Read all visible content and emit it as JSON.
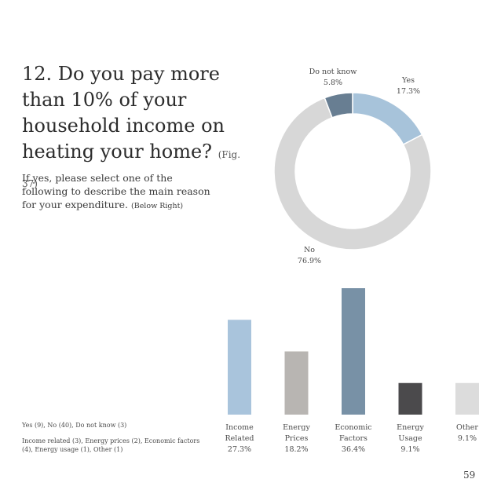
{
  "page": {
    "title": "12. Do you pay more than 10% of your household income on heating your home?",
    "fig_ref": "(Fig. 37)",
    "subtitle": "If yes, please select one of the following to describe the main reason for your expenditure.",
    "subtitle_note": "(Below Right)",
    "footnote_counts": "Yes (9), No (40), Do not know (3)",
    "footnote_reasons": "Income related (3), Energy prices (2), Economic factors (4), Energy usage (1), Other (1)",
    "page_number": "59"
  },
  "chart_data": [
    {
      "type": "pie",
      "donut": true,
      "slices": [
        {
          "label": "Yes",
          "value": 17.3,
          "display": "17.3%",
          "color": "#a7c3da"
        },
        {
          "label": "No",
          "value": 76.9,
          "display": "76.9%",
          "color": "#d7d7d7"
        },
        {
          "label": "Do not know",
          "value": 5.8,
          "display": "5.8%",
          "color": "#687e92"
        }
      ]
    },
    {
      "type": "bar",
      "categories": [
        {
          "lines": [
            "Income",
            "Related"
          ],
          "display": "27.3%"
        },
        {
          "lines": [
            "Energy",
            "Prices"
          ],
          "display": "18.2%"
        },
        {
          "lines": [
            "Economic",
            "Factors"
          ],
          "display": "36.4%"
        },
        {
          "lines": [
            "Energy",
            "Usage"
          ],
          "display": "9.1%"
        },
        {
          "lines": [
            "Other"
          ],
          "display": "9.1%"
        }
      ],
      "values": [
        27.3,
        18.2,
        36.4,
        9.1,
        9.1
      ],
      "colors": [
        "#a9c4dc",
        "#b8b5b2",
        "#7891a6",
        "#4b4a4c",
        "#dcdcdc"
      ],
      "ylim": [
        0,
        36.4
      ]
    }
  ]
}
